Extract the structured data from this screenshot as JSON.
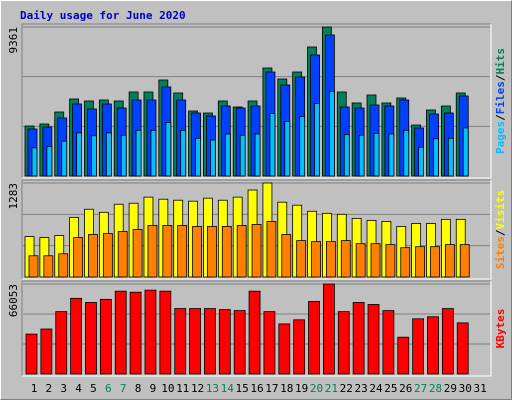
{
  "chart_data": {
    "type": "bar",
    "title": "Daily usage for June 2020",
    "categories": [
      "1",
      "2",
      "3",
      "4",
      "5",
      "6",
      "7",
      "8",
      "9",
      "10",
      "11",
      "12",
      "13",
      "14",
      "15",
      "16",
      "17",
      "18",
      "19",
      "20",
      "21",
      "22",
      "23",
      "24",
      "25",
      "26",
      "27",
      "28",
      "29",
      "30",
      "31"
    ],
    "category_colors": [
      "#000000",
      "#000000",
      "#000000",
      "#000000",
      "#000000",
      "#00805c",
      "#00805c",
      "#000000",
      "#000000",
      "#000000",
      "#000000",
      "#000000",
      "#00805c",
      "#00805c",
      "#000000",
      "#000000",
      "#000000",
      "#000000",
      "#000000",
      "#00805c",
      "#00805c",
      "#000000",
      "#000000",
      "#000000",
      "#000000",
      "#000000",
      "#00805c",
      "#00805c",
      "#000000",
      "#000000",
      "#000000"
    ],
    "panels": [
      {
        "ylim": [
          0,
          9361
        ],
        "yticks": [
          9361
        ],
        "grid_divisions": 3,
        "legend_separator": "/",
        "series": [
          {
            "name": "Hits",
            "color": "#00805c",
            "values": [
              3141,
              3267,
              4021,
              4838,
              4712,
              4775,
              4712,
              5278,
              5278,
              6032,
              5215,
              4084,
              3958,
              4712,
              4335,
              4712,
              6786,
              6094,
              6534,
              8105,
              9361,
              5278,
              4587,
              5089,
              4587,
              4901,
              3204,
              4147,
              4398,
              5215,
              null
            ]
          },
          {
            "name": "Files",
            "color": "#0040ff",
            "values": [
              2953,
              3079,
              3644,
              4524,
              4210,
              4524,
              4272,
              4775,
              4775,
              5592,
              4775,
              3958,
              3770,
              4398,
              4272,
              4398,
              6534,
              5718,
              6220,
              7602,
              8859,
              4335,
              4272,
              4461,
              4398,
              4775,
              3016,
              3895,
              3958,
              5026,
              null
            ]
          },
          {
            "name": "Pages",
            "color": "#00c0ff",
            "values": [
              1770,
              1850,
              2190,
              2710,
              2530,
              2710,
              2560,
              2870,
              2870,
              3360,
              2870,
              2370,
              2260,
              2640,
              2560,
              2640,
              3920,
              3430,
              3730,
              4560,
              5320,
              2600,
              2560,
              2680,
              2640,
              2870,
              1810,
              2340,
              2370,
              3020,
              null
            ]
          }
        ]
      },
      {
        "ylim": [
          0,
          1283
        ],
        "yticks": [
          1283
        ],
        "grid_divisions": 3,
        "legend_separator": "/",
        "series": [
          {
            "name": "Visits",
            "color": "#ffff00",
            "values": [
              552,
              538,
              566,
              814,
              925,
              883,
              993,
              1007,
              1090,
              1062,
              1048,
              1035,
              1076,
              1048,
              1090,
              1187,
              1283,
              1021,
              980,
              897,
              869,
              856,
              800,
              773,
              759,
              690,
              731,
              731,
              787,
              787,
              null
            ]
          },
          {
            "name": "Sites",
            "color": "#ff8000",
            "values": [
              290,
              290,
              317,
              538,
              580,
              593,
              621,
              649,
              704,
              704,
              704,
              690,
              690,
              690,
              704,
              718,
              759,
              580,
              497,
              483,
              483,
              497,
              455,
              455,
              442,
              400,
              414,
              414,
              442,
              442,
              null
            ]
          }
        ]
      },
      {
        "ylim": [
          0,
          66053
        ],
        "yticks": [
          66053
        ],
        "grid_divisions": 3,
        "legend_separator": "/",
        "series": [
          {
            "name": "KBytes",
            "color": "#ff0000",
            "values": [
              29273,
              33026,
              45787,
              55544,
              52542,
              54794,
              60799,
              60048,
              61549,
              60799,
              48038,
              48038,
              48038,
              47288,
              46537,
              60799,
              45787,
              36779,
              39782,
              53293,
              66053,
              45787,
              52542,
              51041,
              46537,
              27022,
              40532,
              42034,
              48038,
              37530,
              null
            ]
          }
        ]
      }
    ]
  }
}
